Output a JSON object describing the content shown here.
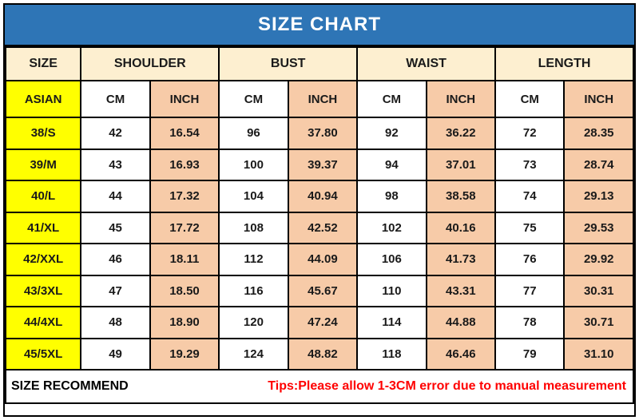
{
  "title": "SIZE CHART",
  "colors": {
    "title_bar_bg": "#2E75B6",
    "title_text": "#FFFFFF",
    "group_header_bg": "#FDEFD0",
    "size_column_bg": "#FFFF00",
    "cm_column_bg": "#FFFFFF",
    "inch_column_bg": "#F7CBA8",
    "tips_text": "#FF0000",
    "border": "#000000"
  },
  "table": {
    "groups": [
      "SIZE",
      "SHOULDER",
      "BUST",
      "WAIST",
      "LENGTH"
    ],
    "unit_row": {
      "size_label": "ASIAN",
      "cm_label": "CM",
      "inch_label": "INCH"
    },
    "rows": [
      {
        "size": "38/S",
        "values": [
          "42",
          "16.54",
          "96",
          "37.80",
          "92",
          "36.22",
          "72",
          "28.35"
        ]
      },
      {
        "size": "39/M",
        "values": [
          "43",
          "16.93",
          "100",
          "39.37",
          "94",
          "37.01",
          "73",
          "28.74"
        ]
      },
      {
        "size": "40/L",
        "values": [
          "44",
          "17.32",
          "104",
          "40.94",
          "98",
          "38.58",
          "74",
          "29.13"
        ]
      },
      {
        "size": "41/XL",
        "values": [
          "45",
          "17.72",
          "108",
          "42.52",
          "102",
          "40.16",
          "75",
          "29.53"
        ]
      },
      {
        "size": "42/XXL",
        "values": [
          "46",
          "18.11",
          "112",
          "44.09",
          "106",
          "41.73",
          "76",
          "29.92"
        ]
      },
      {
        "size": "43/3XL",
        "values": [
          "47",
          "18.50",
          "116",
          "45.67",
          "110",
          "43.31",
          "77",
          "30.31"
        ]
      },
      {
        "size": "44/4XL",
        "values": [
          "48",
          "18.90",
          "120",
          "47.24",
          "114",
          "44.88",
          "78",
          "30.71"
        ]
      },
      {
        "size": "45/5XL",
        "values": [
          "49",
          "19.29",
          "124",
          "48.82",
          "118",
          "46.46",
          "79",
          "31.10"
        ]
      }
    ]
  },
  "footer": {
    "left_label": "SIZE RECOMMEND",
    "tips": "Tips:Please allow 1-3CM error due to manual measurement"
  },
  "chart_data": {
    "type": "table",
    "title": "SIZE CHART",
    "columns": [
      "SIZE (ASIAN)",
      "SHOULDER CM",
      "SHOULDER INCH",
      "BUST CM",
      "BUST INCH",
      "WAIST CM",
      "WAIST INCH",
      "LENGTH CM",
      "LENGTH INCH"
    ],
    "rows": [
      [
        "38/S",
        42,
        16.54,
        96,
        37.8,
        92,
        36.22,
        72,
        28.35
      ],
      [
        "39/M",
        43,
        16.93,
        100,
        39.37,
        94,
        37.01,
        73,
        28.74
      ],
      [
        "40/L",
        44,
        17.32,
        104,
        40.94,
        98,
        38.58,
        74,
        29.13
      ],
      [
        "41/XL",
        45,
        17.72,
        108,
        42.52,
        102,
        40.16,
        75,
        29.53
      ],
      [
        "42/XXL",
        46,
        18.11,
        112,
        44.09,
        106,
        41.73,
        76,
        29.92
      ],
      [
        "43/3XL",
        47,
        18.5,
        116,
        45.67,
        110,
        43.31,
        77,
        30.31
      ],
      [
        "44/4XL",
        48,
        18.9,
        120,
        47.24,
        114,
        44.88,
        78,
        30.71
      ],
      [
        "45/5XL",
        49,
        19.29,
        124,
        48.82,
        118,
        46.46,
        79,
        31.1
      ]
    ],
    "note": "Tips:Please allow 1-3CM error due to manual measurement"
  }
}
